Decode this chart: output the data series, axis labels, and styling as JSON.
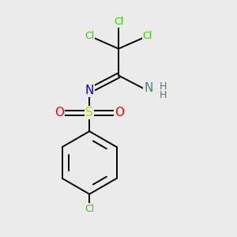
{
  "bg_color": "#ebebeb",
  "colors": {
    "bond": "#000000",
    "Cl": "#33cc00",
    "N": "#0000ff",
    "NH": "#4a7a8a",
    "S": "#cccc00",
    "O": "#ff0000"
  }
}
